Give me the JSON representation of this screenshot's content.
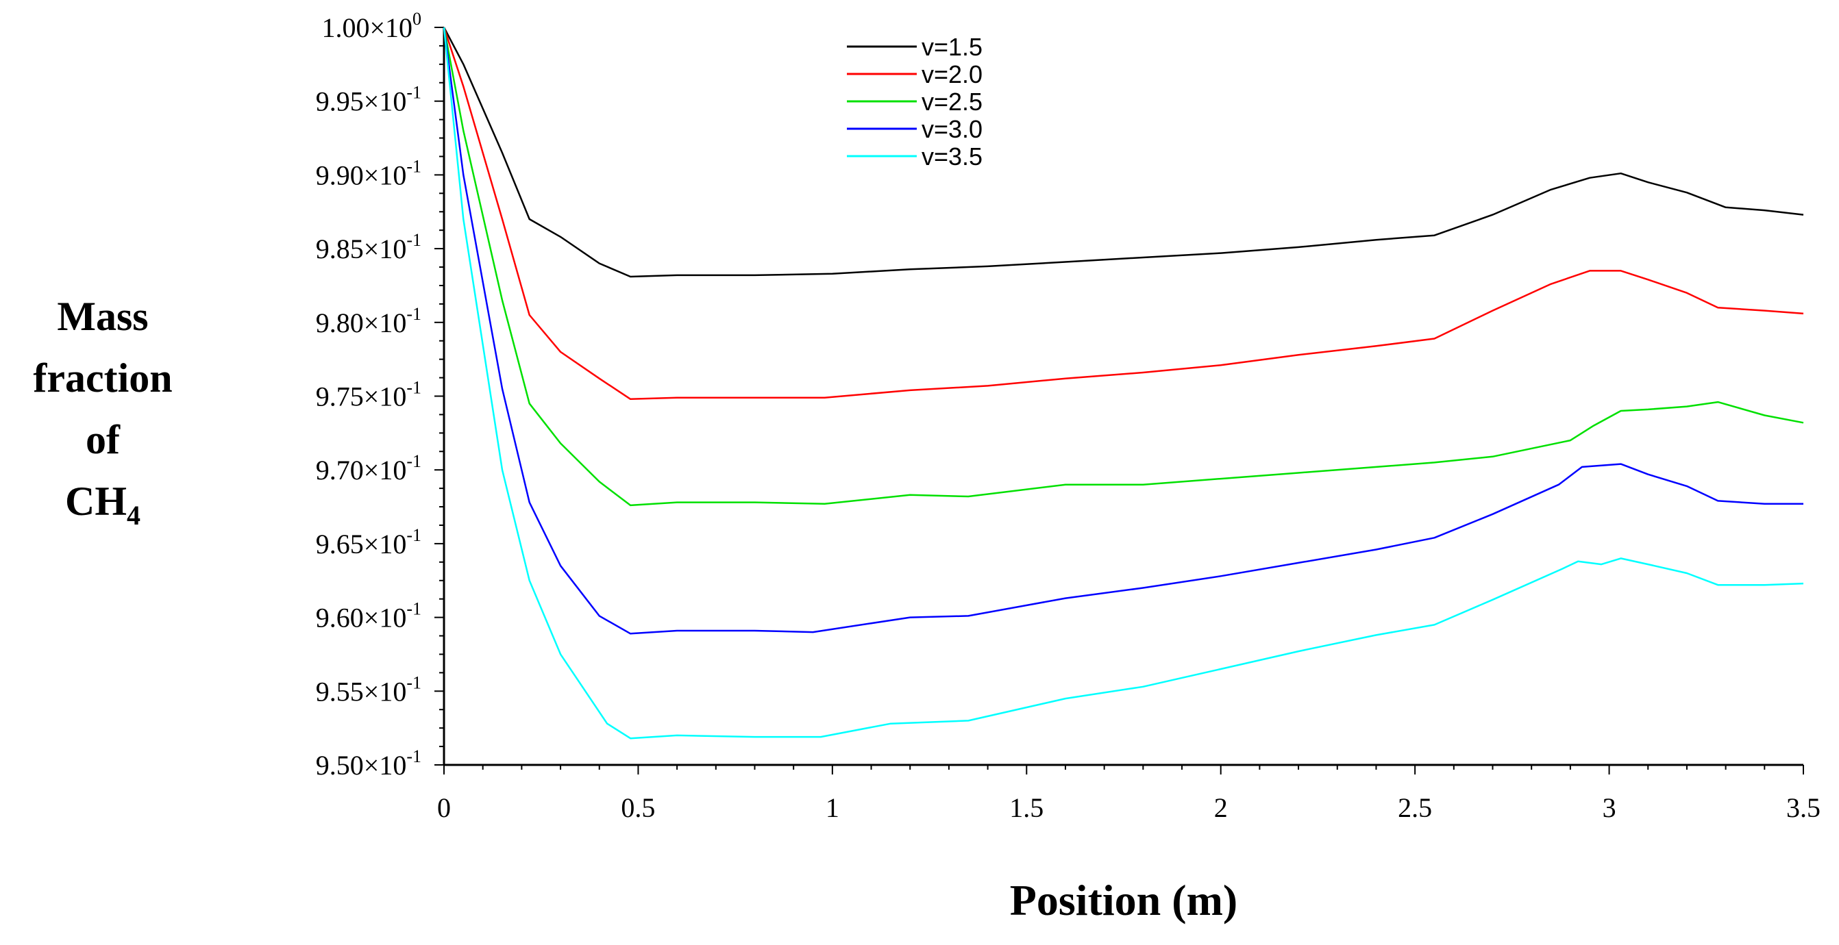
{
  "chart_data": {
    "type": "line",
    "title": "",
    "xlabel": "Position (m)",
    "ylabel_lines": [
      "Mass",
      "fraction",
      "of"
    ],
    "ylabel_species": "CH",
    "ylabel_subscript": "4",
    "xlim": [
      0,
      3.5
    ],
    "ylim": [
      0.95,
      1.0
    ],
    "grid": false,
    "legend_position": "top-center",
    "x_ticks": [
      0,
      0.5,
      1,
      1.5,
      2,
      2.5,
      3,
      3.5
    ],
    "x_tick_labels": [
      "0",
      "0.5",
      "1",
      "1.5",
      "2",
      "2.5",
      "3",
      "3.5"
    ],
    "y_ticks": [
      {
        "value": 1.0,
        "mantissa": "1.00",
        "exponent": "0"
      },
      {
        "value": 0.995,
        "mantissa": "9.95",
        "exponent": "-1"
      },
      {
        "value": 0.99,
        "mantissa": "9.90",
        "exponent": "-1"
      },
      {
        "value": 0.985,
        "mantissa": "9.85",
        "exponent": "-1"
      },
      {
        "value": 0.98,
        "mantissa": "9.80",
        "exponent": "-1"
      },
      {
        "value": 0.975,
        "mantissa": "9.75",
        "exponent": "-1"
      },
      {
        "value": 0.97,
        "mantissa": "9.70",
        "exponent": "-1"
      },
      {
        "value": 0.965,
        "mantissa": "9.65",
        "exponent": "-1"
      },
      {
        "value": 0.96,
        "mantissa": "9.60",
        "exponent": "-1"
      },
      {
        "value": 0.955,
        "mantissa": "9.55",
        "exponent": "-1"
      },
      {
        "value": 0.95,
        "mantissa": "9.50",
        "exponent": "-1"
      }
    ],
    "series": [
      {
        "name": "v=1.5",
        "color": "#000000",
        "x": [
          0,
          0.05,
          0.15,
          0.22,
          0.3,
          0.4,
          0.48,
          0.6,
          0.8,
          1.0,
          1.2,
          1.4,
          1.6,
          1.8,
          2.0,
          2.2,
          2.4,
          2.55,
          2.7,
          2.85,
          2.95,
          3.03,
          3.1,
          3.2,
          3.3,
          3.4,
          3.5
        ],
        "y": [
          1.0,
          0.9975,
          0.9915,
          0.987,
          0.9858,
          0.984,
          0.9831,
          0.9832,
          0.9832,
          0.9833,
          0.9836,
          0.9838,
          0.9841,
          0.9844,
          0.9847,
          0.9851,
          0.9856,
          0.9859,
          0.9873,
          0.989,
          0.9898,
          0.9901,
          0.9895,
          0.9888,
          0.9878,
          0.9876,
          0.9873
        ]
      },
      {
        "name": "v=2.0",
        "color": "#ff0000",
        "x": [
          0,
          0.05,
          0.15,
          0.22,
          0.3,
          0.4,
          0.48,
          0.6,
          0.8,
          0.98,
          1.2,
          1.4,
          1.6,
          1.8,
          2.0,
          2.2,
          2.4,
          2.55,
          2.7,
          2.85,
          2.95,
          3.03,
          3.1,
          3.2,
          3.28,
          3.4,
          3.5
        ],
        "y": [
          1.0,
          0.996,
          0.987,
          0.9805,
          0.978,
          0.9762,
          0.9748,
          0.9749,
          0.9749,
          0.9749,
          0.9754,
          0.9757,
          0.9762,
          0.9766,
          0.9771,
          0.9778,
          0.9784,
          0.9789,
          0.9808,
          0.9826,
          0.9835,
          0.9835,
          0.9829,
          0.982,
          0.981,
          0.9808,
          0.9806
        ]
      },
      {
        "name": "v=2.5",
        "color": "#00e000",
        "x": [
          0,
          0.05,
          0.15,
          0.22,
          0.3,
          0.4,
          0.48,
          0.6,
          0.8,
          0.98,
          1.2,
          1.35,
          1.6,
          1.8,
          2.0,
          2.2,
          2.4,
          2.55,
          2.7,
          2.9,
          2.96,
          3.03,
          3.1,
          3.2,
          3.28,
          3.4,
          3.5
        ],
        "y": [
          1.0,
          0.993,
          0.9815,
          0.9745,
          0.9718,
          0.9692,
          0.9676,
          0.9678,
          0.9678,
          0.9677,
          0.9683,
          0.9682,
          0.969,
          0.969,
          0.9694,
          0.9698,
          0.9702,
          0.9705,
          0.9709,
          0.972,
          0.973,
          0.974,
          0.9741,
          0.9743,
          0.9746,
          0.9737,
          0.9732
        ]
      },
      {
        "name": "v=3.0",
        "color": "#0000ff",
        "x": [
          0,
          0.05,
          0.15,
          0.22,
          0.3,
          0.4,
          0.48,
          0.6,
          0.8,
          0.95,
          1.2,
          1.35,
          1.6,
          1.8,
          2.0,
          2.2,
          2.4,
          2.55,
          2.7,
          2.87,
          2.93,
          3.03,
          3.1,
          3.2,
          3.28,
          3.4,
          3.5
        ],
        "y": [
          1.0,
          0.99,
          0.9755,
          0.9678,
          0.9635,
          0.9601,
          0.9589,
          0.9591,
          0.9591,
          0.959,
          0.96,
          0.9601,
          0.9613,
          0.962,
          0.9628,
          0.9637,
          0.9646,
          0.9654,
          0.967,
          0.969,
          0.9702,
          0.9704,
          0.9697,
          0.9689,
          0.9679,
          0.9677,
          0.9677
        ]
      },
      {
        "name": "v=3.5",
        "color": "#00ffff",
        "x": [
          0,
          0.05,
          0.15,
          0.22,
          0.3,
          0.42,
          0.48,
          0.6,
          0.8,
          0.97,
          1.15,
          1.35,
          1.6,
          1.8,
          2.0,
          2.2,
          2.4,
          2.55,
          2.7,
          2.88,
          2.92,
          2.98,
          3.03,
          3.1,
          3.2,
          3.28,
          3.4,
          3.5
        ],
        "y": [
          1.0,
          0.987,
          0.97,
          0.9625,
          0.9575,
          0.9528,
          0.9518,
          0.952,
          0.9519,
          0.9519,
          0.9528,
          0.953,
          0.9545,
          0.9553,
          0.9565,
          0.9577,
          0.9588,
          0.9595,
          0.9612,
          0.9633,
          0.9638,
          0.9636,
          0.964,
          0.9636,
          0.963,
          0.9622,
          0.9622,
          0.9623
        ]
      }
    ]
  }
}
